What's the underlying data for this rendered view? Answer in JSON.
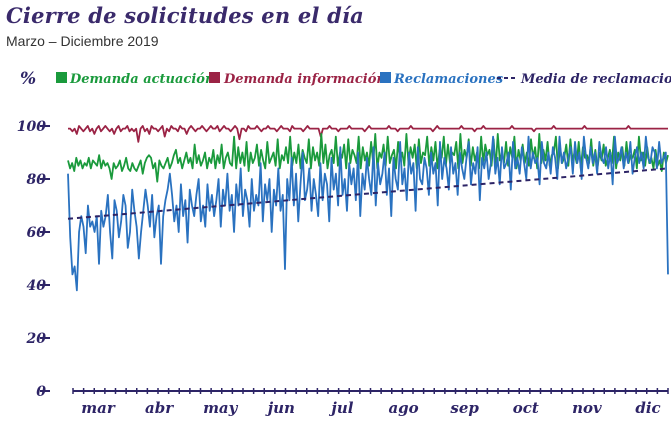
{
  "title": "Cierre de solicitudes en el día",
  "subtitle": "Marzo – Diciembre 2019",
  "colors": {
    "demanda_actuacion": "#1a9a3c",
    "demanda_informacion": "#9b2345",
    "reclamaciones": "#2a72c0",
    "media": "#2d2466",
    "axis": "#2d2466"
  },
  "chart_data": {
    "type": "line",
    "ylabel": "%",
    "ylim": [
      0,
      100
    ],
    "yticks": [
      "0",
      "20",
      "40",
      "60",
      "80",
      "100"
    ],
    "months": [
      "mar",
      "abr",
      "may",
      "jun",
      "jul",
      "ago",
      "sep",
      "oct",
      "nov",
      "dic"
    ],
    "legend_position": "top",
    "legend": [
      "Demanda actuación",
      "Demanda información",
      "Reclamaciones",
      "Media de reclamaciones"
    ],
    "series": [
      {
        "name": "Demanda actuación",
        "color": "#1a9a3c",
        "values": [
          87,
          84,
          86,
          83,
          88,
          85,
          87,
          84,
          86,
          85,
          88,
          84,
          87,
          86,
          85,
          89,
          84,
          87,
          85,
          86,
          84,
          80,
          86,
          84,
          85,
          87,
          83,
          85,
          88,
          84,
          83,
          86,
          84,
          83,
          85,
          87,
          82,
          86,
          88,
          89,
          88,
          84,
          86,
          79,
          87,
          85,
          84,
          86,
          88,
          84,
          86,
          89,
          91,
          86,
          88,
          84,
          87,
          90,
          86,
          88,
          84,
          93,
          86,
          89,
          85,
          87,
          90,
          84,
          88,
          86,
          91,
          84,
          89,
          86,
          93,
          84,
          88,
          90,
          86,
          85,
          96,
          84,
          92,
          86,
          90,
          85,
          94,
          83,
          90,
          86,
          88,
          93,
          85,
          91,
          87,
          84,
          94,
          86,
          88,
          90,
          85,
          95,
          84,
          89,
          87,
          92,
          86,
          96,
          85,
          90,
          86,
          93,
          84,
          91,
          88,
          86,
          95,
          84,
          92,
          87,
          90,
          85,
          97,
          86,
          93,
          84,
          89,
          91,
          86,
          96,
          85,
          90,
          88,
          93,
          84,
          95,
          86,
          91,
          89,
          86,
          96,
          84,
          92,
          87,
          90,
          85,
          94,
          86,
          97,
          84,
          90,
          88,
          93,
          85,
          96,
          86,
          89,
          91,
          84,
          94,
          87,
          90,
          85,
          97,
          86,
          92,
          88,
          93,
          84,
          95,
          86,
          90,
          89,
          96,
          85,
          92,
          87,
          94,
          84,
          91,
          88,
          96,
          85,
          93,
          86,
          90,
          89,
          94,
          84,
          97,
          86,
          91,
          88,
          95,
          85,
          92,
          87,
          90,
          84,
          96,
          86,
          93,
          89,
          91,
          85,
          95,
          84,
          97,
          87,
          90,
          86,
          94,
          85,
          92,
          88,
          96,
          84,
          91,
          87,
          93,
          86,
          90,
          85,
          95,
          88,
          92,
          84,
          97,
          86,
          91,
          87,
          94,
          85,
          89,
          90,
          96,
          84,
          92,
          86,
          88,
          93,
          85,
          95,
          87,
          90,
          86,
          94,
          84,
          92,
          88,
          89,
          86,
          95,
          85,
          91,
          84,
          90,
          87,
          93,
          85,
          88,
          91,
          86,
          96,
          84,
          90,
          87,
          92,
          85,
          94,
          86,
          89,
          88,
          91,
          84,
          96,
          87,
          90,
          85,
          92,
          86,
          88,
          84,
          91,
          85,
          87,
          83,
          90,
          86,
          89
        ]
      },
      {
        "name": "Demanda información",
        "color": "#9b2345",
        "values": [
          99,
          99,
          98,
          99,
          97,
          100,
          99,
          98,
          99,
          100,
          98,
          99,
          97,
          99,
          100,
          98,
          99,
          100,
          99,
          98,
          99,
          97,
          99,
          100,
          98,
          99,
          99,
          100,
          98,
          99,
          98,
          99,
          94,
          99,
          100,
          98,
          99,
          97,
          100,
          99,
          99,
          98,
          99,
          100,
          96,
          99,
          98,
          100,
          99,
          99,
          98,
          100,
          99,
          99,
          97,
          99,
          100,
          99,
          98,
          99,
          99,
          100,
          99,
          98,
          99,
          100,
          99,
          99,
          100,
          98,
          99,
          100,
          99,
          99,
          98,
          99,
          100,
          99,
          95,
          99,
          99,
          98,
          100,
          99,
          99,
          99,
          100,
          99,
          98,
          99,
          99,
          100,
          99,
          99,
          99,
          98,
          99,
          100,
          99,
          99,
          99,
          98,
          100,
          99,
          99,
          99,
          99,
          98,
          99,
          100,
          99,
          99,
          99,
          99,
          99,
          96,
          99,
          99,
          99,
          100,
          99,
          99,
          99,
          98,
          99,
          99,
          99,
          99,
          100,
          99,
          99,
          99,
          99,
          99,
          99,
          98,
          99,
          100,
          99,
          99,
          99,
          99,
          99,
          99,
          99,
          99,
          100,
          99,
          99,
          99,
          98,
          99,
          99,
          99,
          99,
          99,
          100,
          99,
          99,
          99,
          99,
          99,
          99,
          99,
          99,
          99,
          98,
          99,
          100,
          99,
          99,
          99,
          99,
          99,
          99,
          99,
          99,
          99,
          99,
          100,
          99,
          99,
          99,
          99,
          99,
          98,
          99,
          99,
          99,
          100,
          99,
          99,
          99,
          99,
          99,
          99,
          99,
          99,
          99,
          99,
          99,
          99,
          100,
          99,
          99,
          99,
          99,
          99,
          99,
          99,
          99,
          99,
          98,
          99,
          99,
          99,
          99,
          99,
          99,
          99,
          99,
          100,
          99,
          99,
          99,
          99,
          99,
          99,
          99,
          99,
          99,
          99,
          99,
          99,
          99,
          100,
          99,
          99,
          99,
          99,
          99,
          99,
          99,
          99,
          99,
          99,
          99,
          99,
          99,
          99,
          99,
          99,
          99,
          99,
          99,
          100,
          99,
          99,
          99,
          99,
          99,
          99,
          99,
          99,
          99,
          99,
          99,
          99,
          99,
          99,
          99,
          99,
          99,
          99
        ]
      },
      {
        "name": "Reclamaciones",
        "color": "#2a72c0",
        "values": [
          82,
          58,
          44,
          47,
          38,
          60,
          66,
          62,
          52,
          70,
          62,
          64,
          60,
          66,
          48,
          68,
          62,
          66,
          74,
          60,
          50,
          72,
          68,
          58,
          64,
          74,
          70,
          54,
          60,
          76,
          68,
          62,
          50,
          60,
          68,
          76,
          70,
          62,
          74,
          58,
          66,
          70,
          48,
          66,
          72,
          76,
          82,
          74,
          64,
          70,
          60,
          78,
          66,
          72,
          56,
          76,
          70,
          66,
          74,
          80,
          64,
          70,
          62,
          78,
          68,
          74,
          66,
          72,
          80,
          62,
          76,
          70,
          82,
          68,
          74,
          60,
          78,
          70,
          84,
          66,
          76,
          72,
          62,
          80,
          68,
          74,
          70,
          86,
          64,
          78,
          72,
          80,
          60,
          76,
          70,
          84,
          68,
          74,
          46,
          80,
          72,
          88,
          70,
          82,
          64,
          78,
          90,
          72,
          76,
          84,
          68,
          80,
          74,
          66,
          86,
          72,
          82,
          78,
          64,
          88,
          76,
          82,
          70,
          92,
          74,
          80,
          68,
          86,
          78,
          84,
          72,
          90,
          66,
          82,
          76,
          88,
          80,
          74,
          92,
          70,
          86,
          78,
          82,
          90,
          74,
          84,
          66,
          88,
          80,
          76,
          94,
          78,
          84,
          72,
          90,
          82,
          86,
          68,
          92,
          80,
          78,
          88,
          84,
          74,
          90,
          82,
          86,
          70,
          94,
          80,
          88,
          84,
          76,
          92,
          82,
          86,
          74,
          90,
          84,
          80,
          88,
          94,
          78,
          86,
          82,
          92,
          72,
          88,
          84,
          90,
          80,
          86,
          96,
          82,
          88,
          78,
          92,
          84,
          86,
          90,
          76,
          94,
          84,
          88,
          82,
          92,
          86,
          80,
          96,
          84,
          90,
          86,
          88,
          78,
          94,
          86,
          84,
          90,
          82,
          92,
          88,
          80,
          96,
          86,
          90,
          84,
          88,
          92,
          82,
          94,
          86,
          90,
          80,
          96,
          88,
          84,
          92,
          86,
          90,
          82,
          94,
          88,
          86,
          92,
          84,
          90,
          78,
          96,
          86,
          88,
          92,
          84,
          90,
          86,
          94,
          82,
          88,
          92,
          86,
          90,
          84,
          96,
          88,
          86,
          92,
          90,
          84,
          94,
          86,
          88,
          90,
          44
        ]
      },
      {
        "name": "Media de reclamaciones",
        "color": "#2d2466",
        "style": "dashed",
        "values": [
          65,
          84
        ]
      }
    ]
  }
}
